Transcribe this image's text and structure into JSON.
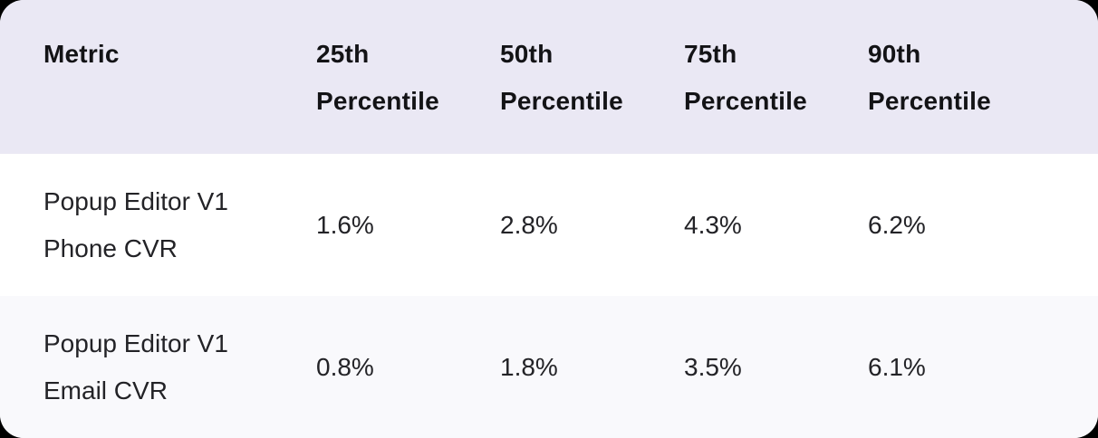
{
  "chart_data": {
    "type": "table",
    "title": "",
    "columns": [
      "Metric",
      "25th Percentile",
      "50th Percentile",
      "75th Percentile",
      "90th Percentile"
    ],
    "rows": [
      [
        "Popup Editor V1 Phone CVR",
        "1.6%",
        "2.8%",
        "4.3%",
        "6.2%"
      ],
      [
        "Popup Editor V1 Email CVR",
        "0.8%",
        "1.8%",
        "3.5%",
        "6.1%"
      ]
    ]
  },
  "display": {
    "columns": [
      {
        "line1": "Metric",
        "line2": ""
      },
      {
        "line1": "25th",
        "line2": "Percentile"
      },
      {
        "line1": "50th",
        "line2": "Percentile"
      },
      {
        "line1": "75th",
        "line2": "Percentile"
      },
      {
        "line1": "90th",
        "line2": "Percentile"
      }
    ],
    "rows": [
      {
        "metric_line1": "Popup Editor V1",
        "metric_line2": "Phone CVR",
        "values": [
          "1.6%",
          "2.8%",
          "4.3%",
          "6.2%"
        ]
      },
      {
        "metric_line1": "Popup Editor V1",
        "metric_line2": "Email CVR",
        "values": [
          "0.8%",
          "1.8%",
          "3.5%",
          "6.1%"
        ]
      }
    ]
  },
  "colors": {
    "page_background": "#000000",
    "header_background": "#eae8f4",
    "row_background": "#ffffff",
    "row_alt_background": "#f9f9fc",
    "header_text": "#131316",
    "body_text": "#232327"
  }
}
